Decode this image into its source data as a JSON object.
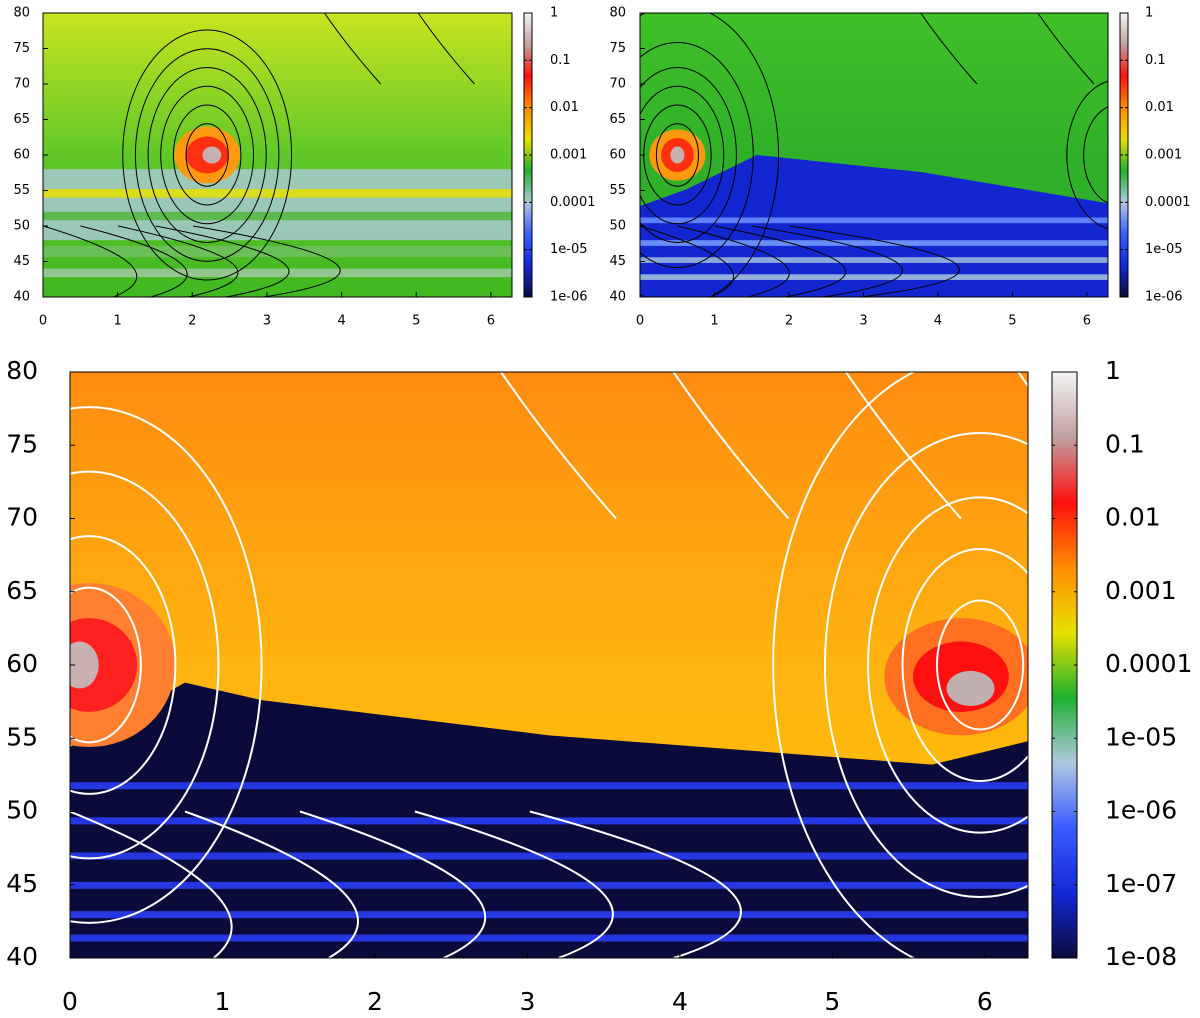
{
  "chart_data": [
    {
      "type": "heatmap",
      "xlim": [
        0,
        6.283
      ],
      "ylim": [
        40,
        80
      ],
      "xticks": [
        0,
        1,
        2,
        3,
        4,
        5,
        6
      ],
      "yticks": [
        40,
        45,
        50,
        55,
        60,
        65,
        70,
        75,
        80
      ],
      "colorbar_log": true,
      "colorbar_lim": [
        1e-06,
        1
      ],
      "colorbar_ticks": [
        {
          "value": 1e-06,
          "label": "1e-06"
        },
        {
          "value": 1e-05,
          "label": "1e-05"
        },
        0.0001,
        0.001,
        0.01,
        0.1,
        1
      ],
      "colormap": [
        "#0b0b3b",
        "#1428d8",
        "#3a5cff",
        "#b0c8e0",
        "#20b030",
        "#e8e000",
        "#ff8c00",
        "#ff1010",
        "#c0a0a0",
        "#f4f4f4"
      ],
      "contour_color": "#000000"
    },
    {
      "type": "heatmap",
      "xlim": [
        0,
        6.283
      ],
      "ylim": [
        40,
        80
      ],
      "xticks": [
        0,
        1,
        2,
        3,
        4,
        5,
        6
      ],
      "yticks": [
        40,
        45,
        50,
        55,
        60,
        65,
        70,
        75,
        80
      ],
      "colorbar_log": true,
      "colorbar_lim": [
        1e-06,
        1
      ],
      "colorbar_ticks": [
        {
          "value": 1e-06,
          "label": "1e-06"
        },
        {
          "value": 1e-05,
          "label": "1e-05"
        },
        0.0001,
        0.001,
        0.01,
        0.1,
        1
      ],
      "colormap": [
        "#0b0b3b",
        "#1428d8",
        "#3a5cff",
        "#b0c8e0",
        "#20b030",
        "#e8e000",
        "#ff8c00",
        "#ff1010",
        "#c0a0a0",
        "#f4f4f4"
      ],
      "contour_color": "#000000"
    },
    {
      "type": "heatmap",
      "xlim": [
        0,
        6.283
      ],
      "ylim": [
        40,
        80
      ],
      "xticks": [
        0,
        1,
        2,
        3,
        4,
        5,
        6
      ],
      "yticks": [
        40,
        45,
        50,
        55,
        60,
        65,
        70,
        75,
        80
      ],
      "colorbar_log": true,
      "colorbar_lim": [
        1e-08,
        1
      ],
      "colorbar_ticks": [
        {
          "value": 1e-08,
          "label": "1e-08"
        },
        {
          "value": 1e-07,
          "label": "1e-07"
        },
        {
          "value": 1e-06,
          "label": "1e-06"
        },
        {
          "value": 1e-05,
          "label": "1e-05"
        },
        0.0001,
        0.001,
        0.01,
        0.1,
        1
      ],
      "colormap": [
        "#0b0b3b",
        "#1428d8",
        "#3a5cff",
        "#b0c8e0",
        "#20b030",
        "#e8e000",
        "#ff8c00",
        "#ff1010",
        "#c0a0a0",
        "#f4f4f4"
      ],
      "contour_color": "#ffffff"
    }
  ]
}
